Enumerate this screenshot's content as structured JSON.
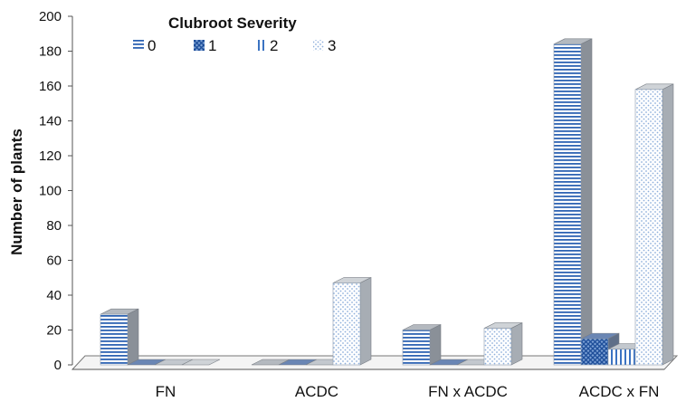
{
  "chart_data": {
    "type": "bar",
    "title": "",
    "ylabel": "Number of plants",
    "xlabel": "",
    "ylim": [
      0,
      200
    ],
    "yticks": [
      0,
      20,
      40,
      60,
      80,
      100,
      120,
      140,
      160,
      180,
      200
    ],
    "categories": [
      "FN",
      "ACDC",
      "FN x ACDC",
      "ACDC x FN"
    ],
    "legend": {
      "title": "Clubroot Severity",
      "placement": "top-left"
    },
    "grid": false,
    "series": [
      {
        "name": "0",
        "values": [
          29,
          0,
          20,
          184
        ],
        "pattern": "horizontal-lines",
        "color": "#2e64b3"
      },
      {
        "name": "1",
        "values": [
          0,
          0,
          0,
          15
        ],
        "pattern": "crosshatch",
        "color": "#1f4f9a"
      },
      {
        "name": "2",
        "values": [
          0,
          0,
          0,
          9
        ],
        "pattern": "vertical-lines",
        "color": "#3b73c2"
      },
      {
        "name": "3",
        "values": [
          0,
          47,
          21,
          158
        ],
        "pattern": "dots",
        "color": "#8fb0dc"
      }
    ]
  }
}
